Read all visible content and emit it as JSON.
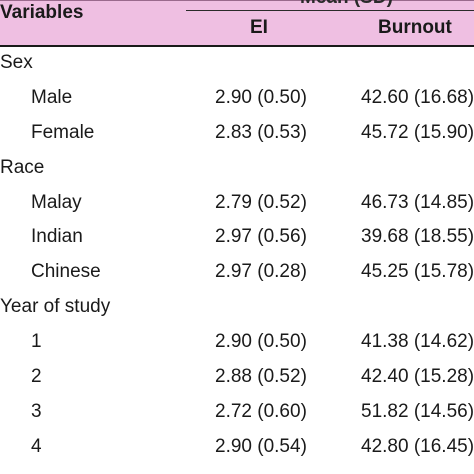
{
  "header": {
    "variables_label": "Variables",
    "ei_label": "EI",
    "burnout_label": "Burnout",
    "clipped_label": "Mean (SD)"
  },
  "groups": [
    {
      "label": "Sex",
      "rows": [
        {
          "label": "Male",
          "ei": "2.90 (0.50)",
          "burnout": "42.60 (16.68)"
        },
        {
          "label": "Female",
          "ei": "2.83 (0.53)",
          "burnout": "45.72 (15.90)"
        }
      ]
    },
    {
      "label": "Race",
      "rows": [
        {
          "label": "Malay",
          "ei": "2.79 (0.52)",
          "burnout": "46.73 (14.85)"
        },
        {
          "label": "Indian",
          "ei": "2.97 (0.56)",
          "burnout": "39.68 (18.55)"
        },
        {
          "label": "Chinese",
          "ei": "2.97 (0.28)",
          "burnout": "45.25 (15.78)"
        }
      ]
    },
    {
      "label": "Year of study",
      "rows": [
        {
          "label": "1",
          "ei": "2.90 (0.50)",
          "burnout": "41.38 (14.62)"
        },
        {
          "label": "2",
          "ei": "2.88 (0.52)",
          "burnout": "42.40 (15.28)"
        },
        {
          "label": "3",
          "ei": "2.72 (0.60)",
          "burnout": "51.82 (14.56)"
        },
        {
          "label": "4",
          "ei": "2.90 (0.54)",
          "burnout": "42.80 (16.45)"
        }
      ]
    }
  ],
  "colors": {
    "header_bg": "#efbfe2",
    "text": "#1a1a1a"
  }
}
